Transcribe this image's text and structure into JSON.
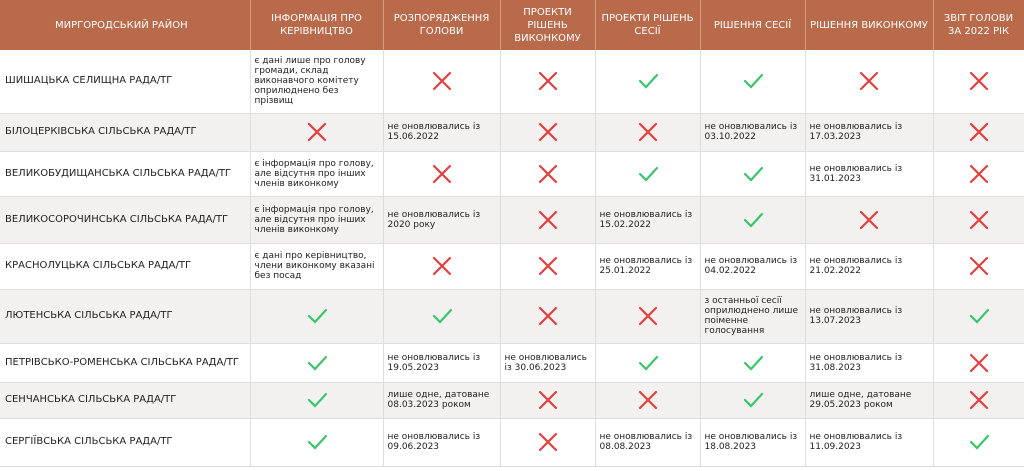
{
  "table": {
    "header": [
      "МИРГОРОДСЬКИЙ РАЙОН",
      "ІНФОРМАЦІЯ ПРО КЕРІВНИЦТВО",
      "РОЗПОРЯДЖЕННЯ ГОЛОВИ",
      "ПРОЕКТИ РІШЕНЬ ВИКОНКОМУ",
      "ПРОЕКТИ РІШЕНЬ СЕСІЇ",
      "РІШЕННЯ СЕСІЇ",
      "РІШЕННЯ ВИКОНКОМУ",
      "ЗВІТ ГОЛОВИ ЗА 2022 РІК"
    ],
    "rows": [
      {
        "name": "ШИШАЦЬКА СЕЛИЩНА РАДА/ТГ",
        "cells": [
          "є дані лише про голову громади, склад виконавчого комітету оприлюднено без прізвищ",
          false,
          false,
          true,
          true,
          false,
          false
        ]
      },
      {
        "name": "БІЛОЦЕРКІВСЬКА СІЛЬСЬКА РАДА/ТГ",
        "cells": [
          false,
          "не оновлювались із 15.06.2022",
          false,
          false,
          "не оновлювались із 03.10.2022",
          "не оновлювались із 17.03.2023",
          false
        ]
      },
      {
        "name": "ВЕЛИКОБУДИЩАНСЬКА СІЛЬСЬКА РАДА/ТГ",
        "cells": [
          "є інформація про голову, але відсутня про інших членів виконкому",
          false,
          false,
          true,
          true,
          "не оновлювались із 31.01.2023",
          false
        ]
      },
      {
        "name": "ВЕЛИКОСОРОЧИНСЬКА СІЛЬСЬКА РАДА/ТГ",
        "cells": [
          "є інформація про голову, але відсутня про інших членів виконкому",
          "не оновлювались із 2020 року",
          false,
          "не оновлювались із 15.02.2022",
          true,
          false,
          false
        ]
      },
      {
        "name": "КРАСНОЛУЦЬКА СІЛЬСЬКА РАДА/ТГ",
        "cells": [
          "є дані про керівництво, члени виконкому вказані без посад",
          false,
          false,
          "не оновлювались із 25.01.2022",
          "не оновлювались із 04.02.2022",
          "не оновлювались із 21.02.2022",
          false
        ]
      },
      {
        "name": "ЛЮТЕНСЬКА СІЛЬСЬКА РАДА/ТГ",
        "cells": [
          true,
          true,
          false,
          false,
          "з останньої сесії оприлюднено лише поіменне голосування",
          "не оновлювались із 13.07.2023",
          true
        ]
      },
      {
        "name": "ПЕТРІВСЬКО-РОМЕНСЬКА СІЛЬСЬКА РАДА/ТГ",
        "cells": [
          true,
          "не оновлювались із 19.05.2023",
          "не оновлювались із 30.06.2023",
          true,
          true,
          "не оновлювались із 31.08.2023",
          false
        ]
      },
      {
        "name": "СЕНЧАНСЬКА СІЛЬСЬКА РАДА/ТГ",
        "cells": [
          true,
          "лише одне, датоване 08.03.2023 роком",
          false,
          false,
          true,
          "лише одне, датоване 29.05.2023 роком",
          false
        ]
      },
      {
        "name": "СЕРГІЇВСЬКА СІЛЬСЬКА РАДА/ТГ",
        "cells": [
          true,
          "не оновлювались із 09.06.2023",
          false,
          "не оновлювались із 08.08.2023",
          "не оновлювались із 18.08.2023",
          "не оновлювались із 11.09.2023",
          true
        ]
      }
    ]
  }
}
